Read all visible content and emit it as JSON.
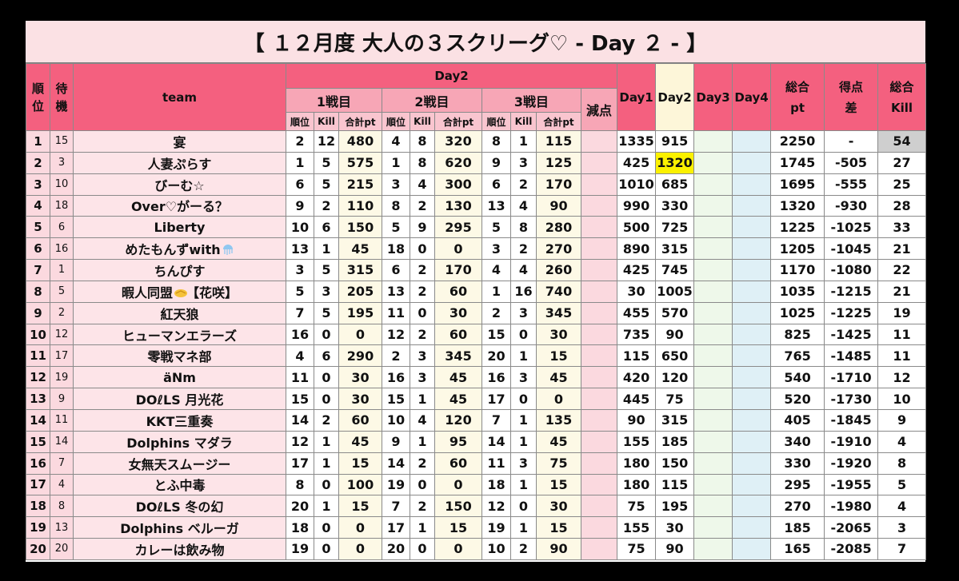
{
  "title": "【 １２月度 大人の３スクリーグ♡ - Day ２ - 】",
  "headers": {
    "rank": "順位",
    "standby": "待機",
    "team": "team",
    "day2": "Day2",
    "match1": "1戦目",
    "match2": "2戦目",
    "match3": "3戦目",
    "penalty": "減点",
    "day1": "Day1",
    "day2col": "Day2",
    "day3": "Day3",
    "day4": "Day4",
    "total_pt": "総合pt",
    "diff": "得点差",
    "total_kill": "総合Kill",
    "sub_rank": "順位",
    "sub_kill": "Kill",
    "sub_pt": "合計pt"
  },
  "rows": [
    {
      "rank": "1",
      "wait": "15",
      "team": "宴",
      "m1": [
        "2",
        "12",
        "480"
      ],
      "m2": [
        "4",
        "8",
        "320"
      ],
      "m3": [
        "8",
        "1",
        "115"
      ],
      "day1": "1335",
      "day2": "915",
      "total": "2250",
      "diff": "-",
      "kill": "54"
    },
    {
      "rank": "2",
      "wait": "3",
      "team": "人妻ぷらす",
      "m1": [
        "1",
        "5",
        "575"
      ],
      "m2": [
        "1",
        "8",
        "620"
      ],
      "m3": [
        "9",
        "3",
        "125"
      ],
      "day1": "425",
      "day2": "1320",
      "total": "1745",
      "diff": "-505",
      "kill": "27"
    },
    {
      "rank": "3",
      "wait": "10",
      "team": "びーむ☆",
      "m1": [
        "6",
        "5",
        "215"
      ],
      "m2": [
        "3",
        "4",
        "300"
      ],
      "m3": [
        "6",
        "2",
        "170"
      ],
      "day1": "1010",
      "day2": "685",
      "total": "1695",
      "diff": "-555",
      "kill": "25"
    },
    {
      "rank": "4",
      "wait": "18",
      "team": "Over♡がーる？",
      "m1": [
        "9",
        "2",
        "110"
      ],
      "m2": [
        "8",
        "2",
        "130"
      ],
      "m3": [
        "13",
        "4",
        "90"
      ],
      "day1": "990",
      "day2": "330",
      "total": "1320",
      "diff": "-930",
      "kill": "28"
    },
    {
      "rank": "5",
      "wait": "6",
      "team": "Liberty",
      "m1": [
        "10",
        "6",
        "150"
      ],
      "m2": [
        "5",
        "9",
        "295"
      ],
      "m3": [
        "5",
        "8",
        "280"
      ],
      "day1": "500",
      "day2": "725",
      "total": "1225",
      "diff": "-1025",
      "kill": "33"
    },
    {
      "rank": "6",
      "wait": "16",
      "team": "めたもんずwith",
      "m1": [
        "13",
        "1",
        "45"
      ],
      "m2": [
        "18",
        "0",
        "0"
      ],
      "m3": [
        "3",
        "2",
        "270"
      ],
      "day1": "890",
      "day2": "315",
      "total": "1205",
      "diff": "-1045",
      "kill": "21"
    },
    {
      "rank": "7",
      "wait": "1",
      "team": "ちんぴす",
      "m1": [
        "3",
        "5",
        "315"
      ],
      "m2": [
        "6",
        "2",
        "170"
      ],
      "m3": [
        "4",
        "4",
        "260"
      ],
      "day1": "425",
      "day2": "745",
      "total": "1170",
      "diff": "-1080",
      "kill": "22"
    },
    {
      "rank": "8",
      "wait": "5",
      "team": "暇人同盟",
      "team_suffix": "【花咲】",
      "m1": [
        "5",
        "3",
        "205"
      ],
      "m2": [
        "13",
        "2",
        "60"
      ],
      "m3": [
        "1",
        "16",
        "740"
      ],
      "day1": "30",
      "day2": "1005",
      "total": "1035",
      "diff": "-1215",
      "kill": "21"
    },
    {
      "rank": "9",
      "wait": "2",
      "team": "紅天狼",
      "m1": [
        "7",
        "5",
        "195"
      ],
      "m2": [
        "11",
        "0",
        "30"
      ],
      "m3": [
        "2",
        "3",
        "345"
      ],
      "day1": "455",
      "day2": "570",
      "total": "1025",
      "diff": "-1225",
      "kill": "19"
    },
    {
      "rank": "10",
      "wait": "12",
      "team": "ヒューマンエラーズ",
      "m1": [
        "16",
        "0",
        "0"
      ],
      "m2": [
        "12",
        "2",
        "60"
      ],
      "m3": [
        "15",
        "0",
        "30"
      ],
      "day1": "735",
      "day2": "90",
      "total": "825",
      "diff": "-1425",
      "kill": "11"
    },
    {
      "rank": "11",
      "wait": "17",
      "team": "零戦マネ部",
      "m1": [
        "4",
        "6",
        "290"
      ],
      "m2": [
        "2",
        "3",
        "345"
      ],
      "m3": [
        "20",
        "1",
        "15"
      ],
      "day1": "115",
      "day2": "650",
      "total": "765",
      "diff": "-1485",
      "kill": "11"
    },
    {
      "rank": "12",
      "wait": "19",
      "team": "äNm",
      "m1": [
        "11",
        "0",
        "30"
      ],
      "m2": [
        "16",
        "3",
        "45"
      ],
      "m3": [
        "16",
        "3",
        "45"
      ],
      "day1": "420",
      "day2": "120",
      "total": "540",
      "diff": "-1710",
      "kill": "12"
    },
    {
      "rank": "13",
      "wait": "9",
      "team": "DOℓLS 月光花",
      "m1": [
        "15",
        "0",
        "30"
      ],
      "m2": [
        "15",
        "1",
        "45"
      ],
      "m3": [
        "17",
        "0",
        "0"
      ],
      "day1": "445",
      "day2": "75",
      "total": "520",
      "diff": "-1730",
      "kill": "10"
    },
    {
      "rank": "14",
      "wait": "11",
      "team": "KKT三重奏",
      "m1": [
        "14",
        "2",
        "60"
      ],
      "m2": [
        "10",
        "4",
        "120"
      ],
      "m3": [
        "7",
        "1",
        "135"
      ],
      "day1": "90",
      "day2": "315",
      "total": "405",
      "diff": "-1845",
      "kill": "9"
    },
    {
      "rank": "15",
      "wait": "14",
      "team": "Dolphins マダラ",
      "m1": [
        "12",
        "1",
        "45"
      ],
      "m2": [
        "9",
        "1",
        "95"
      ],
      "m3": [
        "14",
        "1",
        "45"
      ],
      "day1": "155",
      "day2": "185",
      "total": "340",
      "diff": "-1910",
      "kill": "4"
    },
    {
      "rank": "16",
      "wait": "7",
      "team": "女無天スムージー",
      "m1": [
        "17",
        "1",
        "15"
      ],
      "m2": [
        "14",
        "2",
        "60"
      ],
      "m3": [
        "11",
        "3",
        "75"
      ],
      "day1": "180",
      "day2": "150",
      "total": "330",
      "diff": "-1920",
      "kill": "8"
    },
    {
      "rank": "17",
      "wait": "4",
      "team": "とふ中毒",
      "m1": [
        "8",
        "0",
        "100"
      ],
      "m2": [
        "19",
        "0",
        "0"
      ],
      "m3": [
        "18",
        "1",
        "15"
      ],
      "day1": "180",
      "day2": "115",
      "total": "295",
      "diff": "-1955",
      "kill": "5"
    },
    {
      "rank": "18",
      "wait": "8",
      "team": "DOℓLS 冬の幻",
      "m1": [
        "20",
        "1",
        "15"
      ],
      "m2": [
        "7",
        "2",
        "150"
      ],
      "m3": [
        "12",
        "0",
        "30"
      ],
      "day1": "75",
      "day2": "195",
      "total": "270",
      "diff": "-1980",
      "kill": "4"
    },
    {
      "rank": "19",
      "wait": "13",
      "team": "Dolphins ベルーガ",
      "m1": [
        "18",
        "0",
        "0"
      ],
      "m2": [
        "17",
        "1",
        "15"
      ],
      "m3": [
        "19",
        "1",
        "15"
      ],
      "day1": "155",
      "day2": "30",
      "total": "185",
      "diff": "-2065",
      "kill": "3"
    },
    {
      "rank": "20",
      "wait": "20",
      "team": "カレーは飲み物",
      "m1": [
        "19",
        "0",
        "0"
      ],
      "m2": [
        "20",
        "0",
        "0"
      ],
      "m3": [
        "10",
        "2",
        "90"
      ],
      "day1": "75",
      "day2": "90",
      "total": "165",
      "diff": "-2085",
      "kill": "7"
    }
  ],
  "colors": {
    "header": "#f4607f",
    "light_header": "#f7a6b6",
    "row_pink": "#fbd9df",
    "highlight": "#fbf100"
  }
}
